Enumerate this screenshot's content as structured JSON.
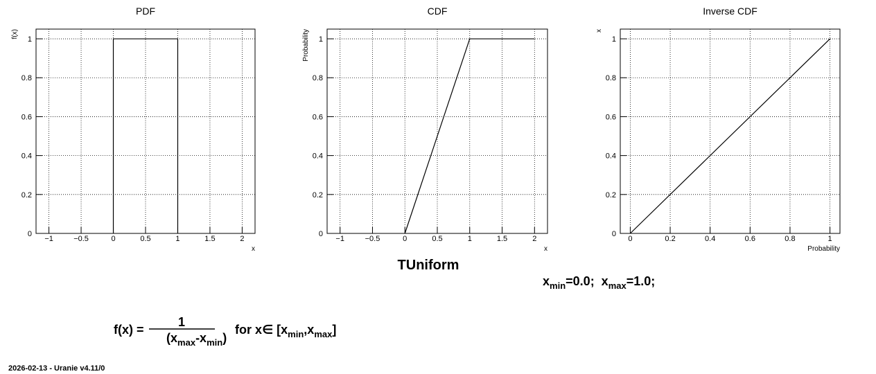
{
  "chart_data": [
    {
      "type": "line",
      "title": "PDF",
      "xlabel": "x",
      "ylabel": "f(x)",
      "x": [
        0,
        0,
        1,
        1
      ],
      "values": [
        0,
        1,
        1,
        0
      ],
      "color": "#000000",
      "xlim": [
        -1.2,
        2.2
      ],
      "ylim": [
        0,
        1.05
      ],
      "xticks": [
        {
          "value": -1,
          "label": "−1"
        },
        {
          "value": -0.5,
          "label": "−0.5"
        },
        0,
        0.5,
        1,
        1.5,
        2
      ],
      "yticks": [
        0,
        0.2,
        0.4,
        0.6,
        0.8,
        1
      ],
      "grid": true
    },
    {
      "type": "line",
      "title": "CDF",
      "xlabel": "x",
      "ylabel": "Probability",
      "x": [
        0,
        1,
        2
      ],
      "values": [
        0,
        1,
        1
      ],
      "color": "#000000",
      "xlim": [
        -1.2,
        2.2
      ],
      "ylim": [
        0,
        1.05
      ],
      "xticks": [
        {
          "value": -1,
          "label": "−1"
        },
        {
          "value": -0.5,
          "label": "−0.5"
        },
        0,
        0.5,
        1,
        1.5,
        2
      ],
      "yticks": [
        0,
        0.2,
        0.4,
        0.6,
        0.8,
        1
      ],
      "grid": true
    },
    {
      "type": "line",
      "title": "Inverse CDF",
      "xlabel": "Probability",
      "ylabel": "x",
      "x": [
        0,
        1
      ],
      "values": [
        0,
        1
      ],
      "color": "#000000",
      "xlim": [
        -0.05,
        1.05
      ],
      "ylim": [
        0,
        1.05
      ],
      "xticks": [
        0,
        0.2,
        0.4,
        0.6,
        0.8,
        1
      ],
      "yticks": [
        0,
        0.2,
        0.4,
        0.6,
        0.8,
        1
      ],
      "grid": true
    }
  ],
  "heading": "TUniform",
  "parameters": [
    "x",
    "min",
    "=0.0;  x",
    "max",
    "=1.0;"
  ],
  "formula": {
    "lhs": "f(x) =",
    "numerator": "1",
    "denominator": [
      "(x",
      "max",
      "-x",
      "min",
      ")"
    ],
    "condition": [
      "for x∈ [x",
      "min",
      ",x",
      "max",
      "]"
    ]
  },
  "footer": "2026-02-13 - Uranie v4.11/0"
}
